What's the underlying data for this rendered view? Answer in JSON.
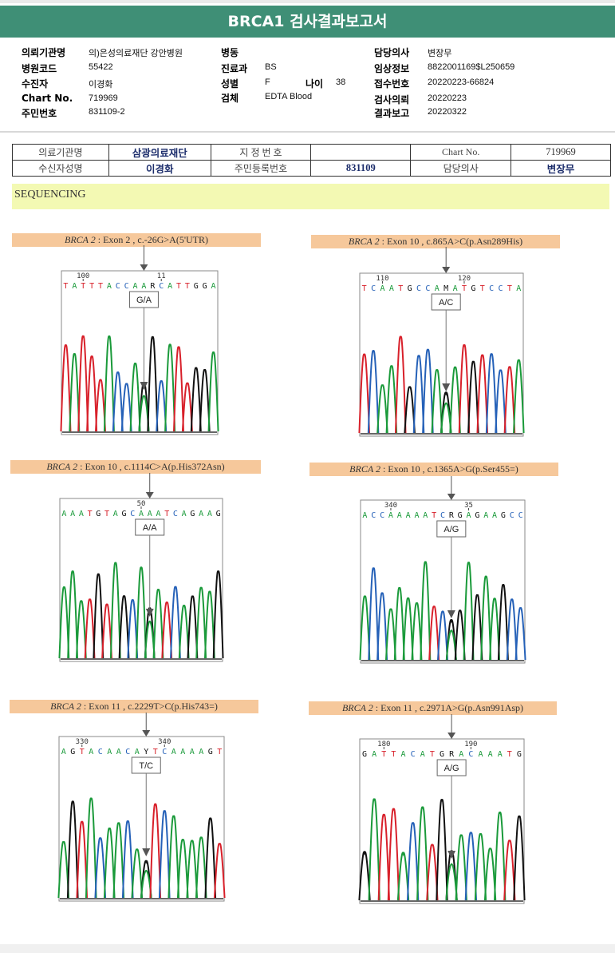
{
  "report": {
    "title": "BRCA1 검사결과보고서"
  },
  "info": [
    {
      "label": "의뢰기관명",
      "value": "의)은성의료재단 강안병원"
    },
    {
      "label": "병원코드",
      "value": "55422"
    },
    {
      "label": "수진자",
      "value": "이경화"
    },
    {
      "label": "Chart No.",
      "value": "719969"
    },
    {
      "label": "주민번호",
      "value": "831109-2"
    },
    {
      "label": "병동",
      "value": ""
    },
    {
      "label": "진료과",
      "value": "BS"
    },
    {
      "label": "성별",
      "value": "F"
    },
    {
      "label": "나이",
      "value": "38"
    },
    {
      "label": "검체",
      "value": "EDTA Blood"
    },
    {
      "label": "담당의사",
      "value": "변장무"
    },
    {
      "label": "임상정보",
      "value": "8822001169$L250659"
    },
    {
      "label": "접수번호",
      "value": "20220223-66824"
    },
    {
      "label": "검사의뢰",
      "value": "20220223"
    },
    {
      "label": "결과보고",
      "value": "20220322"
    }
  ],
  "patient_table": {
    "requesting_institution_label": "의료기관명",
    "requesting_institution": "삼광의료재단",
    "designated_no_label": "지 정 번 호",
    "designated_no": "",
    "chart_no_label": "Chart No.",
    "chart_no": "719969",
    "recipient_label": "수신자성명",
    "recipient": "이경화",
    "resident_no_label": "주민등록번호",
    "resident_no": "831109",
    "doctor_label": "담당의사",
    "doctor": "변장무"
  },
  "section": {
    "title": "SEQUENCING"
  },
  "chromatograms": [
    {
      "gene": "BRCA 2",
      "detail": " : Exon 2 , c.-26G>A(5'UTR)",
      "sequence": "TATTTACCAARCATTGGA",
      "tick_labels": [
        "100",
        "11"
      ],
      "call": "G/A"
    },
    {
      "gene": "BRCA 2",
      "detail": " : Exon 10 , c.865A>C(p.Asn289His)",
      "sequence": "TCAATGCCAMATGTCCTA",
      "tick_labels": [
        "110",
        "120"
      ],
      "call": "A/C"
    },
    {
      "gene": "BRCA 2",
      "detail": " : Exon 10 , c.1114C>A(p.His372Asn)",
      "sequence": "AAATGTAGCAAATCAGAAG",
      "tick_labels": [
        "50"
      ],
      "call": "A/A"
    },
    {
      "gene": "BRCA 2",
      "detail": " : Exon 10 , c.1365A>G(p.Ser455=)",
      "sequence": "ACCAAAAATCRGAGAAGCC",
      "tick_labels": [
        "340",
        "35"
      ],
      "call": "A/G"
    },
    {
      "gene": "BRCA 2",
      "detail": " : Exon 11 , c.2229T>C(p.His743=)",
      "sequence": "AGTACAACAYTCAAAAGT",
      "tick_labels": [
        "330",
        "340"
      ],
      "call": "T/C"
    },
    {
      "gene": "BRCA 2",
      "detail": " : Exon 11 , c.2971A>G(p.Asn991Asp)",
      "sequence": "GATTACATGRACAAATG",
      "tick_labels": [
        "180",
        "190"
      ],
      "call": "A/G"
    }
  ],
  "base_colors": {
    "A": "#1a9a3a",
    "C": "#2561b8",
    "G": "#111111",
    "T": "#d8202a",
    "R": "#111111",
    "M": "#111111",
    "Y": "#111111"
  }
}
